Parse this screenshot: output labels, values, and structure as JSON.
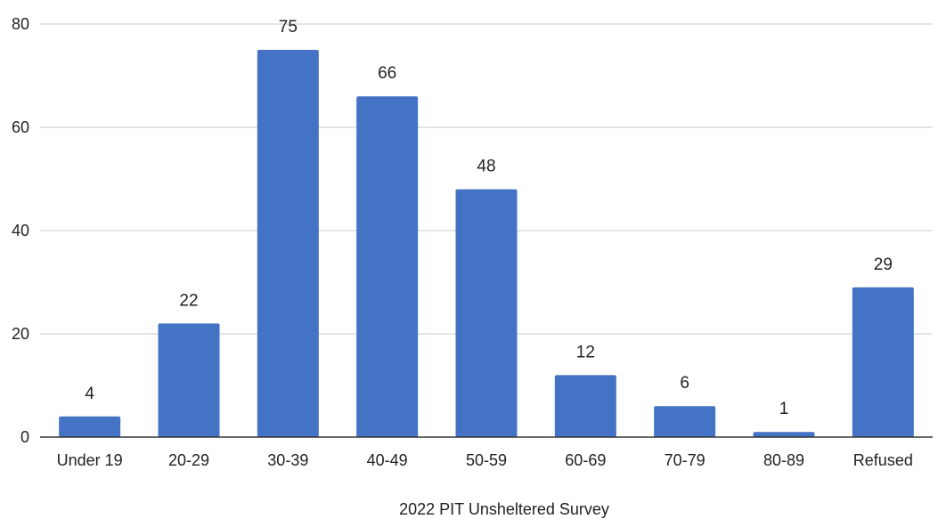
{
  "chart_data": {
    "type": "bar",
    "categories": [
      "Under 19",
      "20-29",
      "30-39",
      "40-49",
      "50-59",
      "60-69",
      "70-79",
      "80-89",
      "Refused"
    ],
    "values": [
      4,
      22,
      75,
      66,
      48,
      12,
      6,
      1,
      29
    ],
    "data_labels": [
      "4",
      "22",
      "75",
      "66",
      "48",
      "12",
      "6",
      "1",
      "29"
    ],
    "title": "",
    "xlabel": "2022 PIT Unsheltered Survey",
    "ylabel": "",
    "ylim": [
      0,
      80
    ],
    "yticks": [
      0,
      20,
      40,
      60,
      80
    ],
    "bar_color": "#4472c4",
    "grid": true,
    "legend": "none"
  }
}
